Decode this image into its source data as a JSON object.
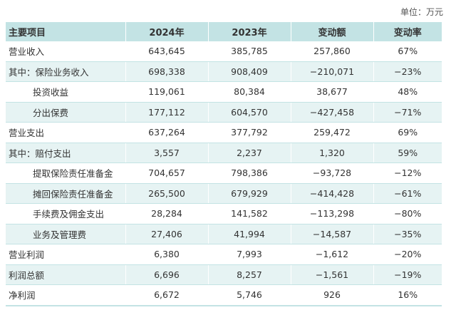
{
  "unit_label": "单位：万元",
  "headers": [
    "主要项目",
    "2024年",
    "2023年",
    "变动额",
    "变动率"
  ],
  "rows": [
    {
      "item": "营业收入",
      "indent": 0,
      "y2024": "643,645",
      "y2023": "385,785",
      "change": "257,860",
      "rate": "67%"
    },
    {
      "item": "其中：保险业务收入",
      "indent": 0,
      "y2024": "698,338",
      "y2023": "908,409",
      "change": "−210,071",
      "rate": "−23%"
    },
    {
      "item": "投资收益",
      "indent": 1,
      "y2024": "119,061",
      "y2023": "80,384",
      "change": "38,677",
      "rate": "48%"
    },
    {
      "item": "分出保费",
      "indent": 1,
      "y2024": "177,112",
      "y2023": "604,570",
      "change": "−427,458",
      "rate": "−71%"
    },
    {
      "item": "营业支出",
      "indent": 0,
      "y2024": "637,264",
      "y2023": "377,792",
      "change": "259,472",
      "rate": "69%"
    },
    {
      "item": "其中：赔付支出",
      "indent": 0,
      "y2024": "3,557",
      "y2023": "2,237",
      "change": "1,320",
      "rate": "59%"
    },
    {
      "item": "提取保险责任准备金",
      "indent": 1,
      "y2024": "704,657",
      "y2023": "798,386",
      "change": "−93,728",
      "rate": "−12%"
    },
    {
      "item": "摊回保险责任准备金",
      "indent": 1,
      "y2024": "265,500",
      "y2023": "679,929",
      "change": "−414,428",
      "rate": "−61%"
    },
    {
      "item": "手续费及佣金支出",
      "indent": 1,
      "y2024": "28,284",
      "y2023": "141,582",
      "change": "−113,298",
      "rate": "−80%"
    },
    {
      "item": "业务及管理费",
      "indent": 1,
      "y2024": "27,406",
      "y2023": "41,994",
      "change": "−14,587",
      "rate": "−35%"
    },
    {
      "item": "营业利润",
      "indent": 0,
      "y2024": "6,380",
      "y2023": "7,993",
      "change": "−1,612",
      "rate": "−20%"
    },
    {
      "item": "利润总额",
      "indent": 0,
      "y2024": "6,696",
      "y2023": "8,257",
      "change": "−1,561",
      "rate": "−19%"
    },
    {
      "item": "净利润",
      "indent": 0,
      "y2024": "6,672",
      "y2023": "5,746",
      "change": "926",
      "rate": "16%"
    }
  ]
}
